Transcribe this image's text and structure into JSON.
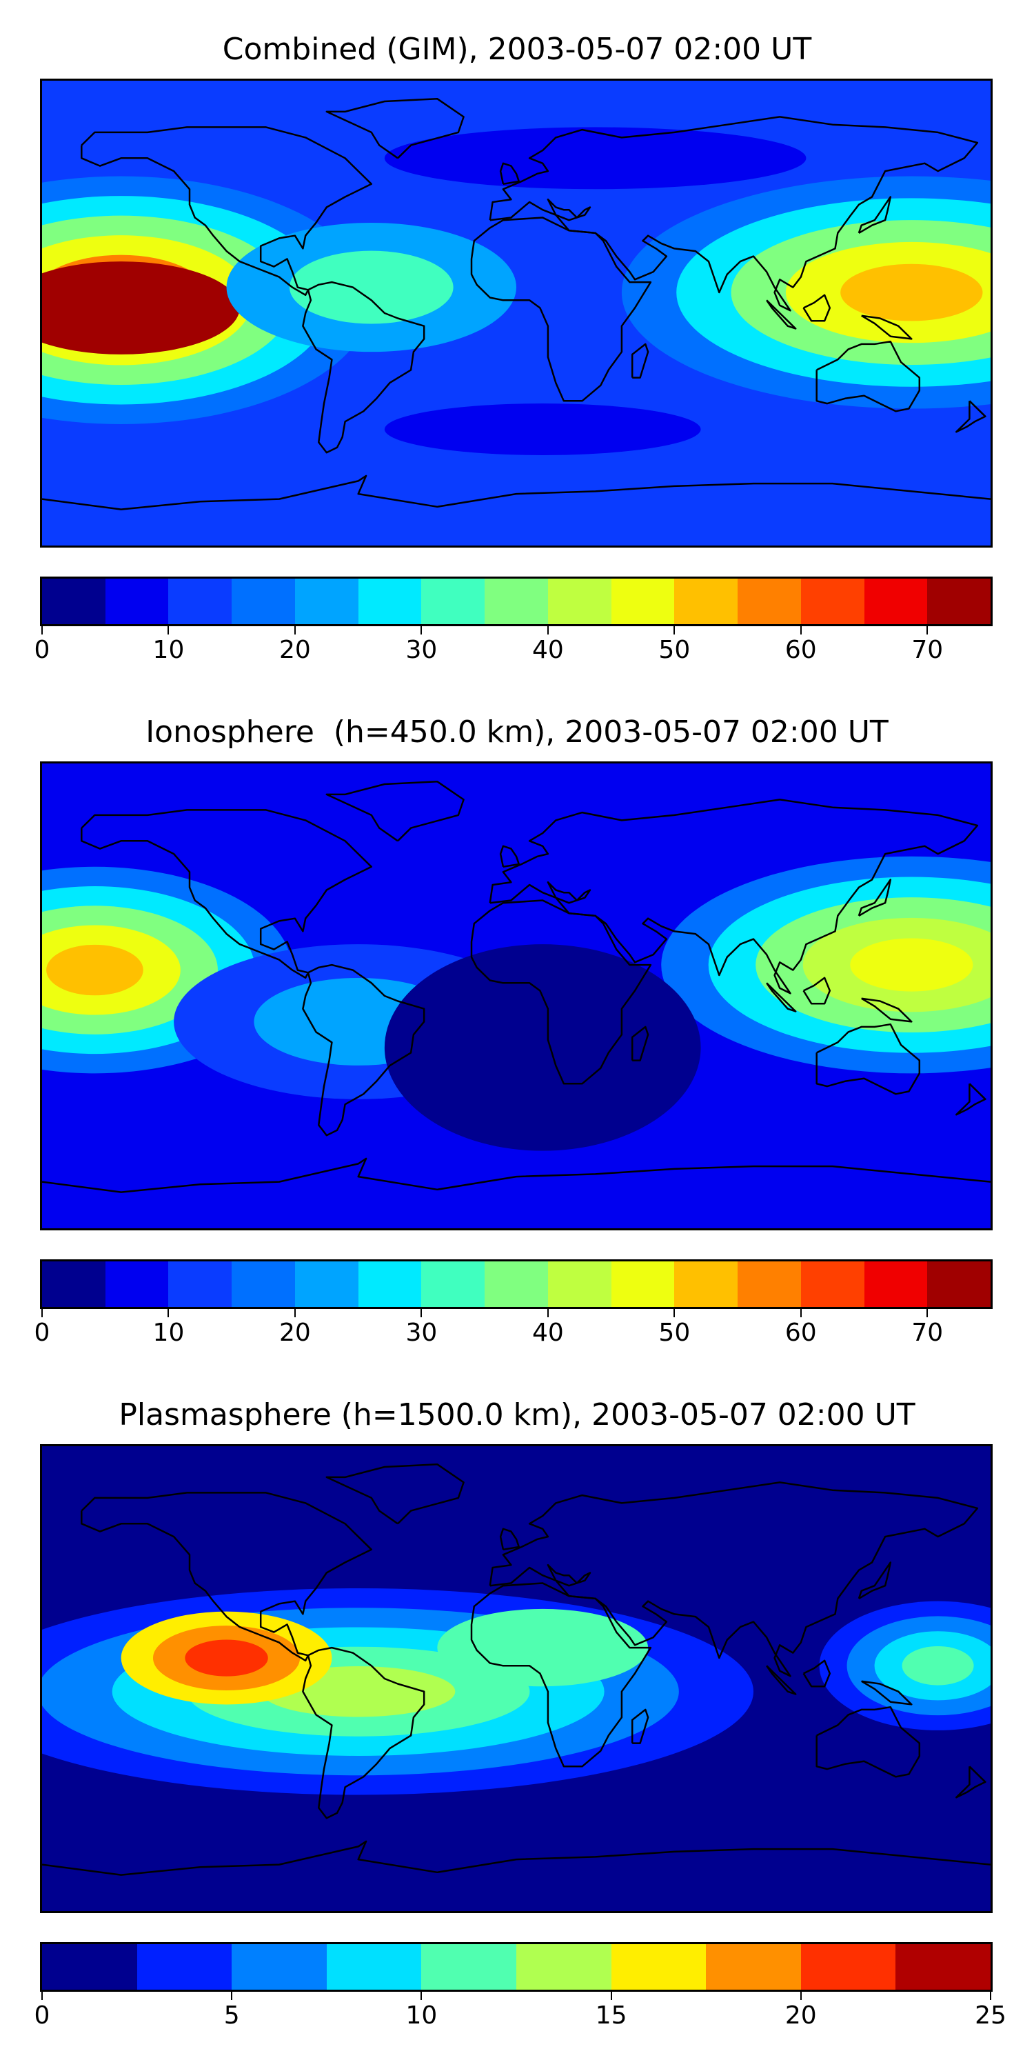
{
  "panels": [
    {
      "title": "Combined (GIM), 2003-05-07 02:00 UT",
      "colorbar": {
        "min": 0,
        "max": 75,
        "step": 5,
        "ticks": [
          "0",
          "10",
          "20",
          "30",
          "40",
          "50",
          "60",
          "70"
        ],
        "tick_values": [
          0,
          10,
          20,
          30,
          40,
          50,
          60,
          70
        ],
        "colors": [
          "#00008f",
          "#0000f0",
          "#0a3cff",
          "#0070ff",
          "#00a4ff",
          "#00eaff",
          "#40ffbf",
          "#80ff80",
          "#bfff40",
          "#eeff10",
          "#ffc000",
          "#ff8000",
          "#ff4000",
          "#f00000",
          "#a00000"
        ]
      },
      "field": {
        "background_level": 2,
        "blobs": [
          {
            "lon": -150,
            "lat": 5,
            "rlon": 95,
            "rlat": 48,
            "levels": [
              3,
              5,
              7,
              9,
              11,
              13
            ]
          },
          {
            "lon": -150,
            "lat": 2,
            "rlon": 45,
            "rlat": 18,
            "levels": [
              14
            ]
          },
          {
            "lon": 150,
            "lat": 8,
            "rlon": 110,
            "rlat": 45,
            "levels": [
              3,
              5,
              7,
              9,
              10
            ]
          },
          {
            "lon": -55,
            "lat": 10,
            "rlon": 55,
            "rlat": 25,
            "levels": [
              4,
              6
            ]
          },
          {
            "lon": 10,
            "lat": -45,
            "rlon": 60,
            "rlat": 10,
            "levels": [
              1
            ]
          },
          {
            "lon": 30,
            "lat": 60,
            "rlon": 80,
            "rlat": 12,
            "levels": [
              1
            ]
          }
        ]
      }
    },
    {
      "title": "Ionosphere  (h=450.0 km), 2003-05-07 02:00 UT",
      "colorbar": {
        "min": 0,
        "max": 75,
        "step": 5,
        "ticks": [
          "0",
          "10",
          "20",
          "30",
          "40",
          "50",
          "60",
          "70"
        ],
        "tick_values": [
          0,
          10,
          20,
          30,
          40,
          50,
          60,
          70
        ],
        "colors": [
          "#00008f",
          "#0000f0",
          "#0a3cff",
          "#0070ff",
          "#00a4ff",
          "#00eaff",
          "#40ffbf",
          "#80ff80",
          "#bfff40",
          "#eeff10",
          "#ffc000",
          "#ff8000",
          "#ff4000",
          "#f00000",
          "#a00000"
        ]
      },
      "field": {
        "background_level": 1,
        "blobs": [
          {
            "lon": -160,
            "lat": 10,
            "rlon": 75,
            "rlat": 40,
            "levels": [
              3,
              5,
              7,
              9,
              10
            ]
          },
          {
            "lon": 150,
            "lat": 12,
            "rlon": 95,
            "rlat": 42,
            "levels": [
              3,
              5,
              7,
              8,
              9
            ]
          },
          {
            "lon": -60,
            "lat": -10,
            "rlon": 70,
            "rlat": 30,
            "levels": [
              2,
              4
            ]
          },
          {
            "lon": 10,
            "lat": -20,
            "rlon": 60,
            "rlat": 40,
            "levels": [
              0
            ]
          }
        ]
      }
    },
    {
      "title": "Plasmasphere (h=1500.0 km), 2003-05-07 02:00 UT",
      "colorbar": {
        "min": 0,
        "max": 25,
        "step": 2.5,
        "ticks": [
          "0",
          "5",
          "10",
          "15",
          "20",
          "25"
        ],
        "tick_values": [
          0,
          5,
          10,
          15,
          20,
          25
        ],
        "colors": [
          "#00008f",
          "#0020ff",
          "#0080ff",
          "#00e0ff",
          "#50ffb0",
          "#b0ff50",
          "#ffee00",
          "#ff9000",
          "#ff3000",
          "#b00000"
        ]
      },
      "field": {
        "background_level": 0,
        "blobs": [
          {
            "lon": -60,
            "lat": -5,
            "rlon": 150,
            "rlat": 40,
            "levels": [
              1,
              2,
              3,
              4,
              5
            ]
          },
          {
            "lon": -110,
            "lat": 8,
            "rlon": 40,
            "rlat": 18,
            "levels": [
              6,
              7,
              8
            ]
          },
          {
            "lon": 160,
            "lat": 5,
            "rlon": 45,
            "rlat": 25,
            "levels": [
              1,
              2,
              3,
              4
            ]
          },
          {
            "lon": 10,
            "lat": 12,
            "rlon": 40,
            "rlat": 15,
            "levels": [
              4
            ]
          }
        ]
      }
    }
  ]
}
